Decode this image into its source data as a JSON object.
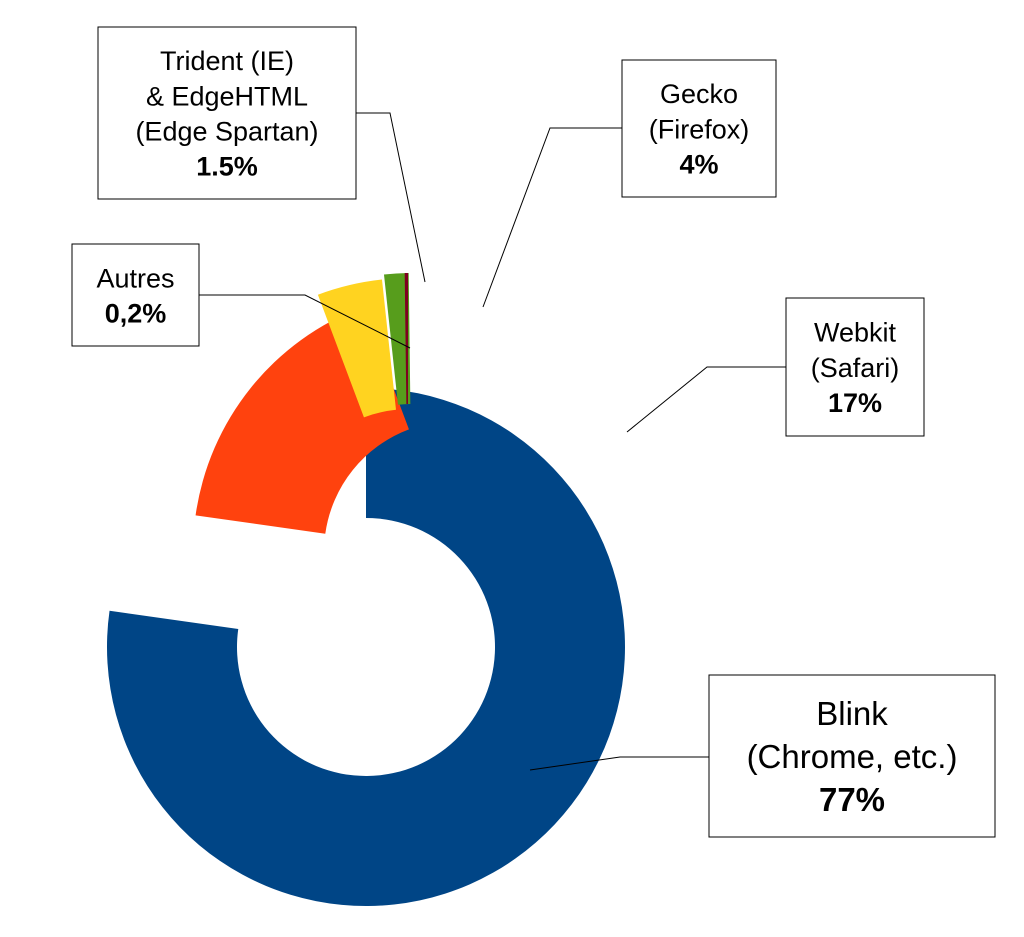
{
  "chart_data": {
    "type": "pie",
    "title": "",
    "slices": [
      {
        "label_lines": [
          "Blink",
          "(Chrome, etc.)"
        ],
        "value_text": "77%",
        "value": 77,
        "color": "#004586"
      },
      {
        "label_lines": [
          "Webkit",
          "(Safari)"
        ],
        "value_text": "17%",
        "value": 17,
        "color": "#ff420e"
      },
      {
        "label_lines": [
          "Gecko",
          "(Firefox)"
        ],
        "value_text": "4%",
        "value": 4,
        "color": "#ffd320"
      },
      {
        "label_lines": [
          "Trident (IE)",
          "& EdgeHTML",
          "(Edge Spartan)"
        ],
        "value_text": "1.5%",
        "value": 1.5,
        "color": "#579d1c"
      },
      {
        "label_lines": [
          "Autres"
        ],
        "value_text": "0,2%",
        "value": 0.2,
        "color": "#7e0021"
      }
    ]
  }
}
